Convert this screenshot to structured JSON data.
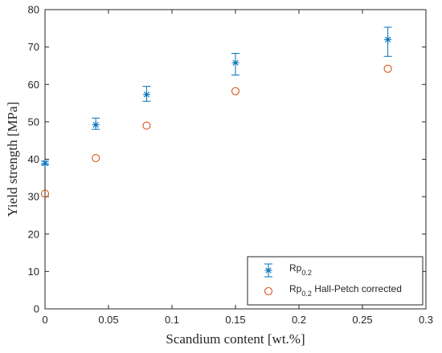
{
  "chart_data": {
    "type": "scatter",
    "title": "",
    "xlabel": "Scandium content [wt.%]",
    "ylabel": "Yield strength [MPa]",
    "xlim": [
      0,
      0.3
    ],
    "ylim": [
      0,
      80
    ],
    "xticks": [
      0,
      0.05,
      0.1,
      0.15,
      0.2,
      0.25,
      0.3
    ],
    "xtick_labels": [
      "0",
      "0.05",
      "0.1",
      "0.15",
      "0.2",
      "0.25",
      "0.3"
    ],
    "yticks": [
      0,
      10,
      20,
      30,
      40,
      50,
      60,
      70,
      80
    ],
    "ytick_labels": [
      "0",
      "10",
      "20",
      "30",
      "40",
      "50",
      "60",
      "70",
      "80"
    ],
    "grid": false,
    "legend_position": "bottom-right",
    "series": [
      {
        "legend_main": "Rp",
        "legend_sub": "0.2",
        "legend_suffix": "",
        "marker": "asterisk",
        "color": "#0072BD",
        "x": [
          0,
          0.04,
          0.08,
          0.15,
          0.27
        ],
        "y": [
          38.9,
          49.2,
          57.3,
          65.8,
          72.0
        ],
        "err_low": [
          38.5,
          48.0,
          55.5,
          62.5,
          67.5
        ],
        "err_high": [
          39.5,
          51.0,
          59.5,
          68.3,
          75.3
        ]
      },
      {
        "legend_main": "Rp",
        "legend_sub": "0.2",
        "legend_suffix": " Hall-Petch corrected",
        "marker": "circle",
        "color": "#D95319",
        "x": [
          0,
          0.04,
          0.08,
          0.15,
          0.27
        ],
        "y": [
          30.8,
          40.3,
          49.0,
          58.2,
          64.2
        ]
      }
    ]
  }
}
